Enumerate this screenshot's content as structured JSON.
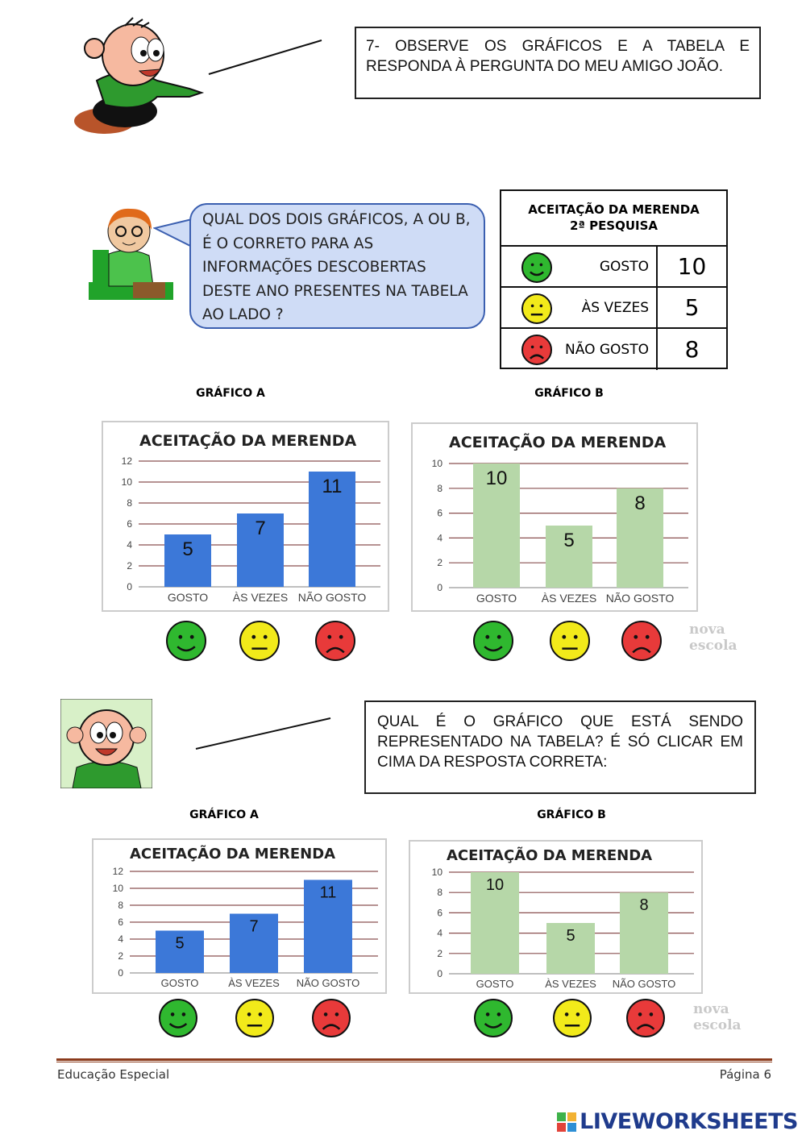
{
  "question1": "7- OBSERVE OS GRÁFICOS E A TABELA E RESPONDA À PERGUNTA DO MEU AMIGO JOÃO.",
  "bubble": "QUAL DOS DOIS GRÁFICOS, A OU B, É O CORRETO PARA AS INFORMAÇÕES DESCOBERTAS DESTE ANO PRESENTES NA TABELA AO LADO ?",
  "table": {
    "title": "ACEITAÇÃO DA MERENDA",
    "subtitle": "2ª PESQUISA",
    "rows": [
      {
        "icon": "happy-face",
        "label": "GOSTO",
        "value": "10"
      },
      {
        "icon": "neutral-face",
        "label": "ÀS VEZES",
        "value": "5"
      },
      {
        "icon": "sad-face",
        "label": "NÃO GOSTO",
        "value": "8"
      }
    ]
  },
  "section1": {
    "label_a": "GRÁFICO A",
    "label_b": "GRÁFICO B"
  },
  "question2": "QUAL É O GRÁFICO QUE ESTÁ SENDO REPRESENTADO NA TABELA? É SÓ CLICAR EM CIMA DA RESPOSTA CORRETA:",
  "section2": {
    "label_a": "GRÁFICO A",
    "label_b": "GRÁFICO B"
  },
  "watermark": [
    "nova",
    "escola"
  ],
  "face_colors": {
    "happy": "#2fb82f",
    "neutral": "#f2ea1a",
    "sad": "#e83a3a"
  },
  "footer": {
    "left": "Educação Especial",
    "right": "Página 6"
  },
  "logo": "LIVEWORKSHEETS",
  "chart_data": [
    {
      "type": "bar",
      "title": "ACEITAÇÃO DA MERENDA",
      "categories": [
        "GOSTO",
        "ÀS VEZES",
        "NÃO GOSTO"
      ],
      "values": [
        5,
        7,
        11
      ],
      "ylim": [
        0,
        12
      ],
      "yticks": [
        0,
        2,
        4,
        6,
        8,
        10,
        12
      ],
      "color": "#3c78d8",
      "grid": true
    },
    {
      "type": "bar",
      "title": "ACEITAÇÃO DA MERENDA",
      "categories": [
        "GOSTO",
        "ÀS VEZES",
        "NÃO GOSTO"
      ],
      "values": [
        10,
        5,
        8
      ],
      "ylim": [
        0,
        10
      ],
      "yticks": [
        0,
        2,
        4,
        6,
        8,
        10
      ],
      "color": "#b6d7a8",
      "grid": true
    },
    {
      "type": "bar",
      "title": "ACEITAÇÃO DA MERENDA",
      "categories": [
        "GOSTO",
        "ÀS VEZES",
        "NÃO GOSTO"
      ],
      "values": [
        5,
        7,
        11
      ],
      "ylim": [
        0,
        12
      ],
      "yticks": [
        0,
        2,
        4,
        6,
        8,
        10,
        12
      ],
      "color": "#3c78d8",
      "grid": true
    },
    {
      "type": "bar",
      "title": "ACEITAÇÃO DA MERENDA",
      "categories": [
        "GOSTO",
        "ÀS VEZES",
        "NÃO GOSTO"
      ],
      "values": [
        10,
        5,
        8
      ],
      "ylim": [
        0,
        10
      ],
      "yticks": [
        0,
        2,
        4,
        6,
        8,
        10
      ],
      "color": "#b6d7a8",
      "grid": true
    }
  ]
}
